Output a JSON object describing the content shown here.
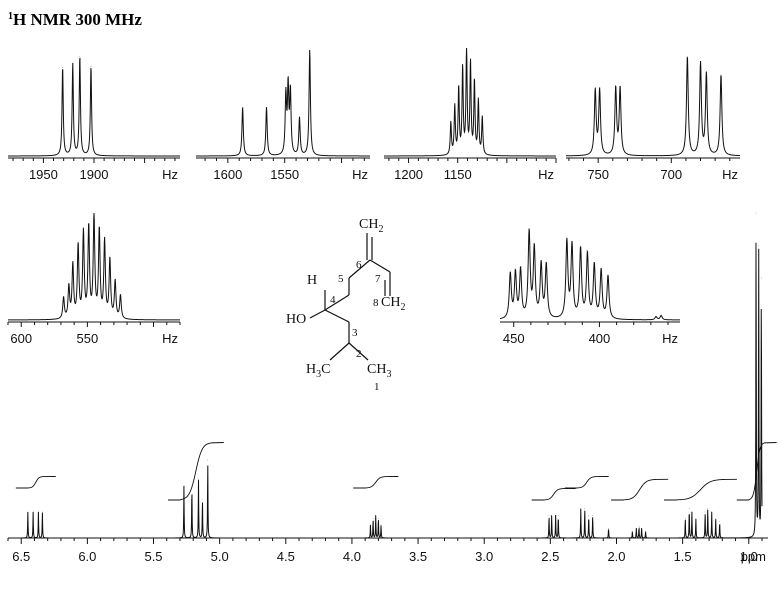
{
  "title": {
    "sup": "1",
    "text": "H NMR 300 MHz"
  },
  "chart_data": {
    "type": "line",
    "main": {
      "x_unit": "ppm",
      "xlim": [
        6.6,
        0.9
      ],
      "ticks": [
        "6.5",
        "6.0",
        "5.5",
        "5.0",
        "4.5",
        "4.0",
        "3.5",
        "3.0",
        "2.5",
        "2.0",
        "1.5",
        "1.0"
      ],
      "tick_values": [
        6.5,
        6.0,
        5.5,
        5.0,
        4.5,
        4.0,
        3.5,
        3.0,
        2.5,
        2.0,
        1.5,
        1.0
      ],
      "peaks": [
        {
          "ppm": 6.45,
          "h": 0.08
        },
        {
          "ppm": 6.41,
          "h": 0.08
        },
        {
          "ppm": 6.37,
          "h": 0.08
        },
        {
          "ppm": 6.34,
          "h": 0.08
        },
        {
          "ppm": 5.27,
          "h": 0.16
        },
        {
          "ppm": 5.21,
          "h": 0.16
        },
        {
          "ppm": 5.16,
          "h": 0.18
        },
        {
          "ppm": 5.13,
          "h": 0.12
        },
        {
          "ppm": 5.09,
          "h": 0.24
        },
        {
          "ppm": 3.86,
          "h": 0.04
        },
        {
          "ppm": 3.84,
          "h": 0.06
        },
        {
          "ppm": 3.82,
          "h": 0.07
        },
        {
          "ppm": 3.8,
          "h": 0.06
        },
        {
          "ppm": 3.78,
          "h": 0.04
        },
        {
          "ppm": 2.51,
          "h": 0.07
        },
        {
          "ppm": 2.49,
          "h": 0.07
        },
        {
          "ppm": 2.46,
          "h": 0.07
        },
        {
          "ppm": 2.44,
          "h": 0.07
        },
        {
          "ppm": 2.27,
          "h": 0.09
        },
        {
          "ppm": 2.24,
          "h": 0.09
        },
        {
          "ppm": 2.21,
          "h": 0.07
        },
        {
          "ppm": 2.18,
          "h": 0.07
        },
        {
          "ppm": 2.06,
          "h": 0.03
        },
        {
          "ppm": 1.88,
          "h": 0.02
        },
        {
          "ppm": 1.85,
          "h": 0.03
        },
        {
          "ppm": 1.83,
          "h": 0.035
        },
        {
          "ppm": 1.81,
          "h": 0.03
        },
        {
          "ppm": 1.78,
          "h": 0.02
        },
        {
          "ppm": 1.48,
          "h": 0.06
        },
        {
          "ppm": 1.45,
          "h": 0.09
        },
        {
          "ppm": 1.43,
          "h": 0.08
        },
        {
          "ppm": 1.4,
          "h": 0.06
        },
        {
          "ppm": 1.33,
          "h": 0.08
        },
        {
          "ppm": 1.31,
          "h": 0.09
        },
        {
          "ppm": 1.28,
          "h": 0.08
        },
        {
          "ppm": 1.25,
          "h": 0.06
        },
        {
          "ppm": 1.22,
          "h": 0.05
        },
        {
          "ppm": 0.945,
          "h": 1.0
        },
        {
          "ppm": 0.925,
          "h": 0.9
        },
        {
          "ppm": 0.905,
          "h": 0.8
        }
      ],
      "integrals": [
        {
          "from": 6.45,
          "to": 6.33,
          "rise": 0.05
        },
        {
          "from": 5.3,
          "to": 5.06,
          "rise": 0.25
        },
        {
          "from": 3.9,
          "to": 3.74,
          "rise": 0.05
        },
        {
          "from": 2.55,
          "to": 2.4,
          "rise": 0.05
        },
        {
          "from": 2.3,
          "to": 2.15,
          "rise": 0.05
        },
        {
          "from": 1.95,
          "to": 1.7,
          "rise": 0.09
        },
        {
          "from": 1.55,
          "to": 1.18,
          "rise": 0.09
        },
        {
          "from": 1.0,
          "to": 0.88,
          "rise": 0.25
        }
      ]
    },
    "insets": [
      {
        "x_unit": "Hz",
        "xlim": [
          1985,
          1815
        ],
        "ticks": [
          "1950",
          "1900"
        ],
        "tick_values": [
          1950,
          1900
        ],
        "peaks": [
          {
            "x": 1931,
            "h": 0.82
          },
          {
            "x": 1921,
            "h": 0.85
          },
          {
            "x": 1914,
            "h": 0.92
          },
          {
            "x": 1903,
            "h": 0.83
          }
        ]
      },
      {
        "x_unit": "Hz",
        "xlim": [
          1628,
          1475
        ],
        "ticks": [
          "1600",
          "1550"
        ],
        "tick_values": [
          1600,
          1550
        ],
        "peaks": [
          {
            "x": 1587,
            "h": 0.45
          },
          {
            "x": 1566,
            "h": 0.45
          },
          {
            "x": 1549,
            "h": 0.55
          },
          {
            "x": 1547,
            "h": 0.62
          },
          {
            "x": 1545,
            "h": 0.58
          },
          {
            "x": 1537,
            "h": 0.35
          },
          {
            "x": 1528,
            "h": 0.98
          }
        ]
      },
      {
        "x_unit": "Hz",
        "xlim": [
          1225,
          1050
        ],
        "ticks": [
          "1200",
          "1150"
        ],
        "tick_values": [
          1200,
          1150
        ],
        "peaks": [
          {
            "x": 1157,
            "h": 0.3
          },
          {
            "x": 1153,
            "h": 0.45
          },
          {
            "x": 1149,
            "h": 0.62
          },
          {
            "x": 1145,
            "h": 0.8
          },
          {
            "x": 1141,
            "h": 0.98
          },
          {
            "x": 1137,
            "h": 0.85
          },
          {
            "x": 1133,
            "h": 0.68
          },
          {
            "x": 1129,
            "h": 0.5
          },
          {
            "x": 1125,
            "h": 0.35
          }
        ]
      },
      {
        "x_unit": "Hz",
        "xlim": [
          772,
          653
        ],
        "ticks": [
          "750",
          "700"
        ],
        "tick_values": [
          750,
          700
        ],
        "peaks": [
          {
            "x": 752,
            "h": 0.6
          },
          {
            "x": 749,
            "h": 0.6
          },
          {
            "x": 738,
            "h": 0.62
          },
          {
            "x": 735,
            "h": 0.62
          },
          {
            "x": 689,
            "h": 0.92
          },
          {
            "x": 680,
            "h": 0.85
          },
          {
            "x": 676,
            "h": 0.75
          },
          {
            "x": 666,
            "h": 0.75
          }
        ]
      },
      {
        "x_unit": "Hz",
        "xlim": [
          610,
          480
        ],
        "ticks": [
          "600",
          "550"
        ],
        "tick_values": [
          600,
          550
        ],
        "peaks": [
          {
            "x": 568,
            "h": 0.2
          },
          {
            "x": 564,
            "h": 0.3
          },
          {
            "x": 561,
            "h": 0.5
          },
          {
            "x": 557,
            "h": 0.68
          },
          {
            "x": 553,
            "h": 0.8
          },
          {
            "x": 549,
            "h": 0.85
          },
          {
            "x": 545,
            "h": 0.95
          },
          {
            "x": 541,
            "h": 0.82
          },
          {
            "x": 537,
            "h": 0.72
          },
          {
            "x": 533,
            "h": 0.55
          },
          {
            "x": 529,
            "h": 0.35
          },
          {
            "x": 525,
            "h": 0.22
          }
        ]
      },
      {
        "x_unit": "Hz",
        "xlim": [
          458,
          353
        ],
        "ticks": [
          "450",
          "400"
        ],
        "tick_values": [
          450,
          400
        ],
        "peaks": [
          {
            "x": 452,
            "h": 0.42
          },
          {
            "x": 449,
            "h": 0.42
          },
          {
            "x": 446,
            "h": 0.45
          },
          {
            "x": 441,
            "h": 0.8
          },
          {
            "x": 438,
            "h": 0.65
          },
          {
            "x": 434,
            "h": 0.5
          },
          {
            "x": 431,
            "h": 0.5
          },
          {
            "x": 419,
            "h": 0.72
          },
          {
            "x": 416,
            "h": 0.68
          },
          {
            "x": 411,
            "h": 0.65
          },
          {
            "x": 407,
            "h": 0.6
          },
          {
            "x": 403,
            "h": 0.5
          },
          {
            "x": 399,
            "h": 0.45
          },
          {
            "x": 395,
            "h": 0.4
          },
          {
            "x": 367,
            "h": 0.03
          },
          {
            "x": 364,
            "h": 0.04
          }
        ]
      }
    ]
  },
  "molecule": {
    "labels": {
      "ch2_top": "CH2",
      "n6": "6",
      "n7": "7",
      "n5": "5",
      "h": "H",
      "n4": "4",
      "n8": "8",
      "ch2_right": "CH2",
      "ho": "HO",
      "n3": "3",
      "n2": "2",
      "h3c": "H3C",
      "ch3": "CH3",
      "n1": "1"
    }
  }
}
